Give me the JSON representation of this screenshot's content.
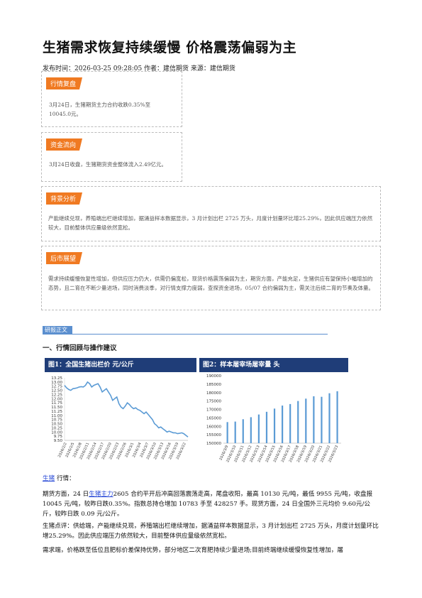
{
  "article": {
    "title": "生猪需求恢复持续缓慢 价格震荡偏弱为主",
    "meta": "发布时间：2026-03-25 09:28:05 作者：建信期货 来源：建信期货"
  },
  "sections": {
    "market_review": {
      "tag": "行情复盘",
      "text": "3月24日，生猪期货主力合约收跌0.35%至10045.0元。"
    },
    "fund_flow": {
      "tag": "资金流向",
      "text": "3月24日收盘，生猪期货资金整体流入2.49亿元。"
    },
    "background": {
      "tag": "背景分析",
      "text": "产能继续兑现，养殖端出栏继续增加，据涌益样本数据显示，3 月计划出栏 2725 万头，月度计划量环比增25.29%，因此供应端压力依然较大，目前整体供应量级依然宽松。"
    },
    "outlook": {
      "tag": "后市展望",
      "text": "需求持续缓慢恢复性增加，但供应压力仍大，供需仍偏宽松，现货价格震荡偏弱为主，期货方面，产能充足，生猪供应有望保持小幅增加的态势，且二育在不断少量进场，同时消费淡季，对行情支撑力度弱，查探资金进场，05/07 合约偏弱为主，需关注后续二育的节奏及体量。"
    }
  },
  "report": {
    "tag": "研报正文",
    "section1": "一、行情回顾与操作建议",
    "para1_prefix": "生猪",
    "para1_suffix": "行情：",
    "para2_a": "期货方面，24 日",
    "para2_link": "生猪主力",
    "para2_b": "2605 合约平开后冲高回落震荡走高，尾盘收阳，最高 10130 元/吨，最低 9955 元/吨，收盘报 10045 元/吨，较昨日跌0.35%。指数总持仓增加 10783 手至 428257 手。现货方面，24 日全国外三元均价 9.60元/公斤，较昨日跌 0.09 元/公斤。",
    "para3": "生猪点评：供给端，产能继续兑现，养殖端出栏继续增加，据涌益样本数据显示，3 月计划出栏 2725 万头，月度计划量环比增25.29%。因此供应端压力依然较大，目前整体供应量级依然宽松。",
    "para4": "需求端，价格跌至低位且肥标价差保持优势，部分地区二次育肥持续少量进场;目前终端继续缓慢恢复性增加，屠"
  },
  "chart_data": [
    {
      "type": "line",
      "title": "图1：全国生猪出栏价    元/公斤",
      "ylim": [
        9.5,
        13.25
      ],
      "yticks": [
        "13.25",
        "13.00",
        "12.75",
        "12.50",
        "12.25",
        "12.00",
        "11.75",
        "11.50",
        "11.25",
        "11.00",
        "10.75",
        "10.50",
        "10.25",
        "10.00",
        "9.75",
        "9.50"
      ],
      "xticks": [
        "2026/2/2",
        "2026/2/5",
        "2026/2/8",
        "2026/2/11",
        "2026/2/14",
        "2026/2/17",
        "2026/2/20",
        "2026/2/23",
        "2026/2/26",
        "2026/3/1",
        "2026/3/4",
        "2026/3/7",
        "2026/3/10",
        "2026/3/13",
        "2026/3/16",
        "2026/3/19",
        "2026/3/22"
      ],
      "values": [
        12.8,
        12.65,
        12.55,
        12.5,
        12.6,
        12.62,
        12.65,
        12.7,
        12.72,
        12.7,
        12.8,
        13.0,
        12.9,
        12.7,
        12.8,
        12.85,
        12.9,
        12.7,
        12.4,
        12.5,
        12.6,
        12.4,
        12.2,
        11.9,
        12.0,
        12.1,
        11.7,
        11.5,
        11.4,
        11.55,
        11.75,
        11.65,
        11.5,
        11.4,
        11.45,
        11.35,
        11.3,
        11.2,
        11.1,
        11.2,
        11.05,
        10.9,
        10.75,
        10.5,
        10.4,
        10.25,
        10.3,
        10.2,
        10.1,
        10.0,
        10.05,
        10.0,
        9.95,
        9.95,
        9.9,
        9.92,
        9.95,
        9.9,
        9.8,
        9.7
      ],
      "color": "#5b9bd5"
    },
    {
      "type": "bar",
      "title": "图2：样本屠宰场屠宰量    头",
      "ylim": [
        150000,
        190000
      ],
      "yticks": [
        "190000",
        "185000",
        "180000",
        "175000",
        "170000",
        "165000",
        "160000",
        "155000",
        "150000"
      ],
      "categories": [
        "2026/3/9",
        "2026/3/10",
        "2026/3/11",
        "2026/3/12",
        "2026/3/13",
        "2026/3/14",
        "2026/3/15",
        "2026/3/16",
        "2026/3/17",
        "2026/3/18",
        "2026/3/19",
        "2026/3/20",
        "2026/3/21",
        "2026/3/22",
        "2026/3/23"
      ],
      "values": [
        162500,
        162800,
        164200,
        165400,
        167000,
        168600,
        170500,
        172300,
        173200,
        175000,
        176400,
        177800,
        177500,
        179600,
        180800
      ],
      "color": "#5b9bd5"
    }
  ]
}
